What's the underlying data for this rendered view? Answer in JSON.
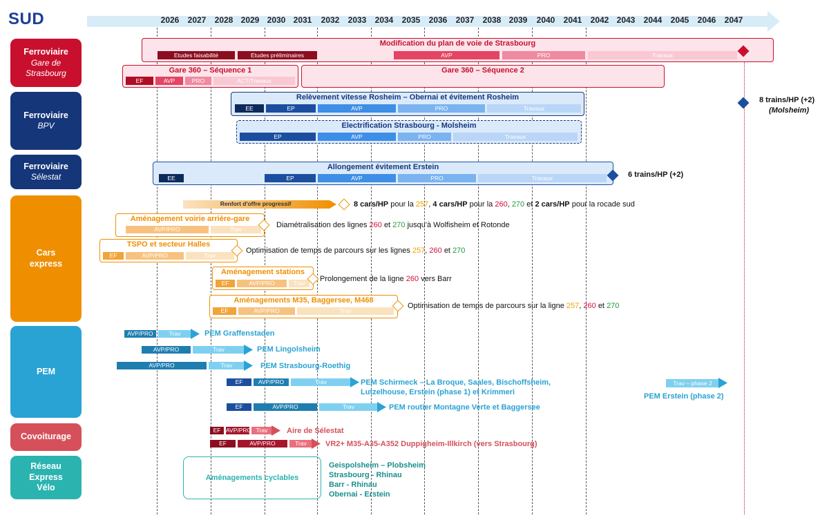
{
  "title": "SUD",
  "years": [
    "2026",
    "2027",
    "2028",
    "2029",
    "2030",
    "2031",
    "2032",
    "2033",
    "2034",
    "2035",
    "2036",
    "2037",
    "2038",
    "2039",
    "2040",
    "2041",
    "2042",
    "2043",
    "2044",
    "2045",
    "2046",
    "2047"
  ],
  "categories": {
    "ferro_gare": {
      "title": "Ferroviaire",
      "sub": "Gare de Strasbourg",
      "color": "#c8102e"
    },
    "ferro_bpv": {
      "title": "Ferroviaire",
      "sub": "BPV",
      "color": "#16367a"
    },
    "ferro_selestat": {
      "title": "Ferroviaire",
      "sub": "Sélestat",
      "color": "#16367a"
    },
    "cars": {
      "title": "Cars express",
      "color": "#ef8f00"
    },
    "pem": {
      "title": "PEM",
      "color": "#29a3d3"
    },
    "covoit": {
      "title": "Covoiturage",
      "color": "#d5505a"
    },
    "rev": {
      "title": "Réseau Express Vélo",
      "color": "#2bb3b0"
    }
  },
  "projects": {
    "strasbourg_plan": {
      "title": "Modification du plan de voie de Strasbourg",
      "phases": [
        "Etudes faisabilité",
        "Etudes préliminaires",
        "AVP",
        "PRO",
        "Travaux"
      ]
    },
    "gare360_1": {
      "title": "Gare 360 – Séquence 1",
      "phases": [
        "EF",
        "AVP",
        "PRO",
        "ACT/Travaux"
      ]
    },
    "gare360_2": {
      "title": "Gare 360 – Séquence 2"
    },
    "rosheim": {
      "title": "Relèvement vitesse Rosheim – Obernai et évitement Rosheim",
      "phases": [
        "EE",
        "EP",
        "AVP",
        "PRO",
        "Travaux"
      ]
    },
    "molsheim": {
      "title": "Electrification Strasbourg - Molsheim",
      "phases": [
        "EP",
        "AVP",
        "PRO",
        "Travaux"
      ]
    },
    "bpv_result": {
      "line1": "8 trains/HP (+2)",
      "line2": "(Molsheim)"
    },
    "erstein": {
      "title": "Allongement évitement Erstein",
      "phases": [
        "EE",
        "EP",
        "AVP",
        "PRO",
        "Travaux"
      ],
      "result": "6 trains/HP (+2)"
    },
    "renfort": {
      "title": "Renfort d'offre progressif",
      "t1": "8 cars/HP",
      "t2": "pour la",
      "l257": "257",
      "t3": ",",
      "t4": "4 cars/HP",
      "t5": "pour la",
      "l260": "260",
      "t6": ",",
      "l270": "270",
      "t7": "et",
      "t8": "2 cars/HP",
      "t9": "pour la rocade sud"
    },
    "voirie": {
      "title": "Aménagement voirie arrière-gare",
      "phases": [
        "AVP/PRO",
        "Trav"
      ],
      "t1": "Diamétralisation des lignes",
      "l260": "260",
      "t2": "et",
      "l270": "270",
      "t3": "jusqu'à Wolfisheim et Rotonde"
    },
    "tspo": {
      "title": "TSPO et secteur Halles",
      "phases": [
        "EF",
        "AVP/PRO",
        "Trav"
      ],
      "t1": "Optimisation de temps de parcours sur les lignes",
      "l257": "257",
      "t2": ",",
      "l260": "260",
      "t3": "et",
      "l270": "270"
    },
    "stations": {
      "title": "Aménagement stations",
      "phases": [
        "EF",
        "AVP/PRO",
        "Trav"
      ],
      "t1": "Prolongement de la ligne",
      "l260": "260",
      "t2": "vers Barr"
    },
    "m35": {
      "title": "Aménagements M35, Baggersee, M468",
      "phases": [
        "EF",
        "AVP/PRO",
        "Trav"
      ],
      "t1": "Optimisation de temps de parcours sur la ligne",
      "l257": "257",
      "t2": ",",
      "l260": "260",
      "t3": "et",
      "l270": "270"
    },
    "pem_graff": {
      "phases": [
        "AVP/PRO",
        "Trav"
      ],
      "label": "PEM Graffenstaden"
    },
    "pem_lingo": {
      "phases": [
        "AVP/PRO",
        "Trav"
      ],
      "label": "PEM Lingolsheim"
    },
    "pem_roethig": {
      "phases": [
        "AVP/PRO",
        "Trav"
      ],
      "label": "PEM Strasbourg-Roethig"
    },
    "pem_schirmeck": {
      "phases": [
        "EF",
        "AVP/PRO",
        "Trav"
      ],
      "line1": "PEM Schirmeck – La Broque, Saales, Bischoffsheim,",
      "line2": "Lutzelhouse, Erstein (phase 1) et Krimmeri"
    },
    "pem_montagne": {
      "phases": [
        "EF",
        "AVP/PRO",
        "Trav"
      ],
      "label": "PEM routier Montagne Verte et Baggersee"
    },
    "pem_erstein2": {
      "phase": "Trav – phase 2",
      "label": "PEM Erstein (phase 2)"
    },
    "covoit_selestat": {
      "phases": [
        "EF",
        "AVP/PRO",
        "Trav"
      ],
      "label": "Aire de Sélestat"
    },
    "covoit_vr2": {
      "phases": [
        "EF",
        "AVP/PRO",
        "Trav"
      ],
      "label": "VR2+ M35-A35-A352 Duppigheim-Illkirch (vers Strasbourg)"
    },
    "velo": {
      "title": "Aménagements cyclables",
      "routes": [
        "Geispolsheim – Plobsheim",
        "Strasbourg - Rhinau",
        "Barr - Rhinau",
        "Obernai - Erstein"
      ]
    }
  }
}
